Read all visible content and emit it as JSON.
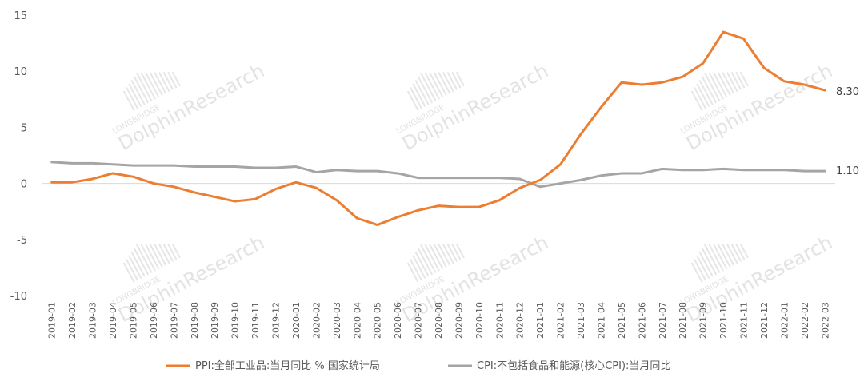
{
  "watermark": {
    "top_text": "LONGBRIDGE",
    "main_text": "DolphinResearch"
  },
  "chart_data": {
    "type": "line",
    "title": "",
    "xlabel": "",
    "ylabel": "",
    "ylim": [
      -10,
      15
    ],
    "yticks": [
      15,
      10,
      5,
      0,
      -5,
      -10
    ],
    "grid": false,
    "legend_position": "bottom",
    "categories": [
      "2019-01",
      "2019-02",
      "2019-03",
      "2019-04",
      "2019-05",
      "2019-06",
      "2019-07",
      "2019-08",
      "2019-09",
      "2019-10",
      "2019-11",
      "2019-12",
      "2020-01",
      "2020-02",
      "2020-03",
      "2020-04",
      "2020-05",
      "2020-06",
      "2020-07",
      "2020-08",
      "2020-09",
      "2020-10",
      "2020-11",
      "2020-12",
      "2021-01",
      "2021-02",
      "2021-03",
      "2021-04",
      "2021-05",
      "2021-06",
      "2021-07",
      "2021-08",
      "2021-09",
      "2021-10",
      "2021-11",
      "2021-12",
      "2022-01",
      "2022-02",
      "2022-03"
    ],
    "series": [
      {
        "name": "PPI:全部工业品:当月同比 % 国家统计局",
        "color": "#ED7D31",
        "values": [
          0.1,
          0.1,
          0.4,
          0.9,
          0.6,
          0.0,
          -0.3,
          -0.8,
          -1.2,
          -1.6,
          -1.4,
          -0.5,
          0.1,
          -0.4,
          -1.5,
          -3.1,
          -3.7,
          -3.0,
          -2.4,
          -2.0,
          -2.1,
          -2.1,
          -1.5,
          -0.4,
          0.3,
          1.7,
          4.4,
          6.8,
          9.0,
          8.8,
          9.0,
          9.5,
          10.7,
          13.5,
          12.9,
          10.3,
          9.1,
          8.8,
          8.3
        ],
        "end_label": "8.30"
      },
      {
        "name": "CPI:不包括食品和能源(核心CPI):当月同比",
        "color": "#A5A5A5",
        "values": [
          1.9,
          1.8,
          1.8,
          1.7,
          1.6,
          1.6,
          1.6,
          1.5,
          1.5,
          1.5,
          1.4,
          1.4,
          1.5,
          1.0,
          1.2,
          1.1,
          1.1,
          0.9,
          0.5,
          0.5,
          0.5,
          0.5,
          0.5,
          0.4,
          -0.3,
          0.0,
          0.3,
          0.7,
          0.9,
          0.9,
          1.3,
          1.2,
          1.2,
          1.3,
          1.2,
          1.2,
          1.2,
          1.1,
          1.1
        ],
        "end_label": "1.10"
      }
    ]
  }
}
